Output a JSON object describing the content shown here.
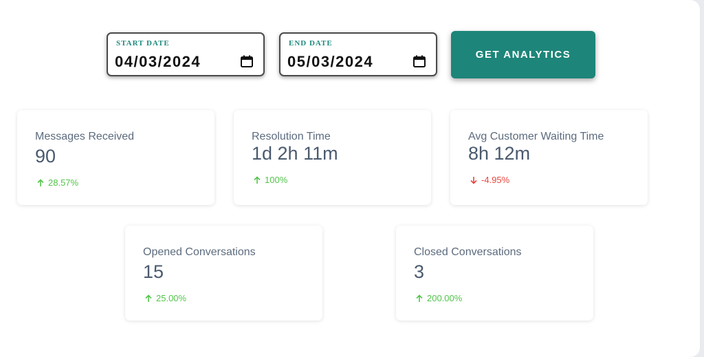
{
  "filters": {
    "start_date": {
      "label": "START DATE",
      "value": "04/03/2024"
    },
    "end_date": {
      "label": "END DATE",
      "value": "05/03/2024"
    },
    "submit_label": "GET ANALYTICS"
  },
  "colors": {
    "accent": "#1d8579",
    "positive": "#52c44a",
    "negative": "#e8453c",
    "text_muted": "#5c6b7e"
  },
  "cards": [
    {
      "title": "Messages Received",
      "value": "90",
      "change": "28.57%",
      "trend": "up"
    },
    {
      "title": "Resolution Time",
      "value": "1d 2h 11m",
      "change": "100%",
      "trend": "up"
    },
    {
      "title": "Avg Customer Waiting Time",
      "value": "8h 12m",
      "change": "-4.95%",
      "trend": "down"
    },
    {
      "title": "Opened Conversations",
      "value": "15",
      "change": "25.00%",
      "trend": "up"
    },
    {
      "title": "Closed Conversations",
      "value": "3",
      "change": "200.00%",
      "trend": "up"
    }
  ],
  "icons": {
    "calendar": "calendar-icon",
    "up": "arrow-up-icon",
    "down": "arrow-down-icon"
  }
}
